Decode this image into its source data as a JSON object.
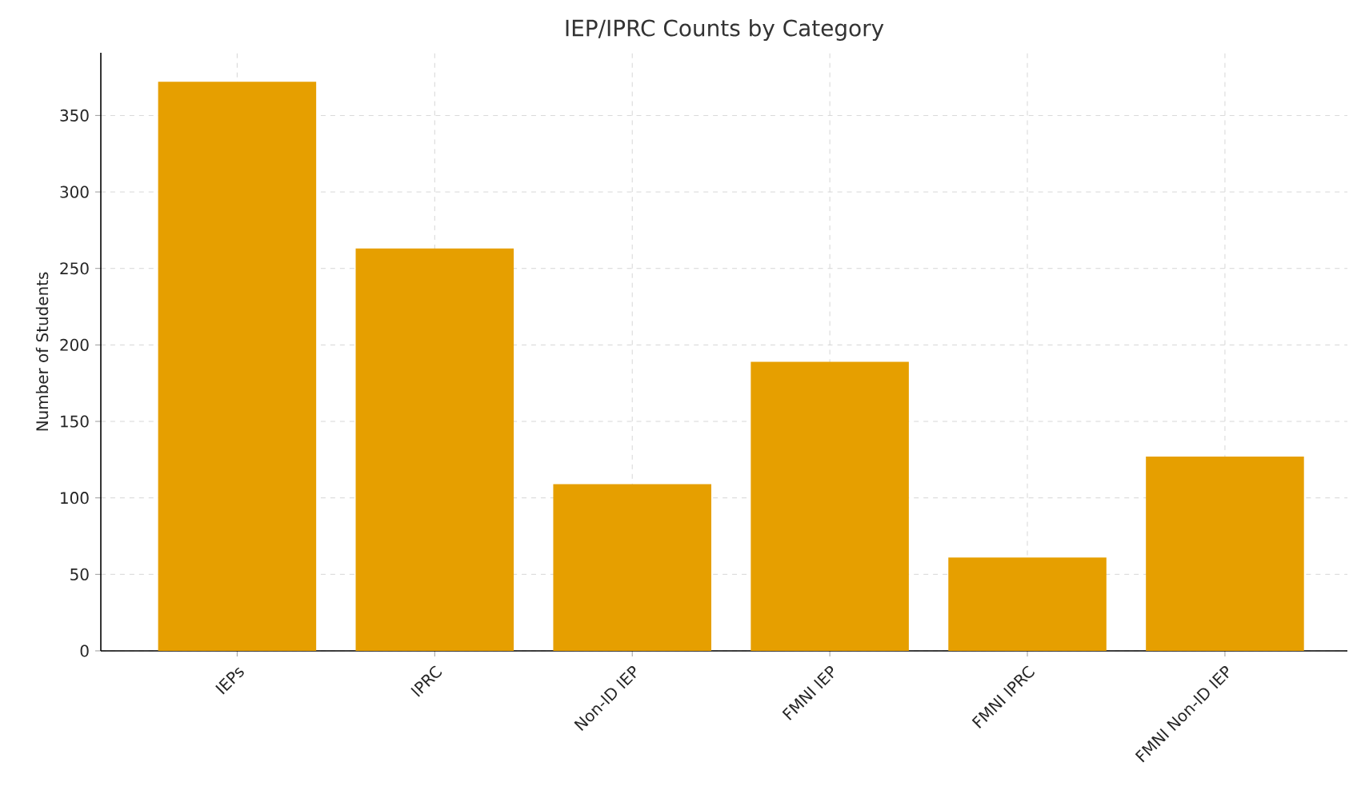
{
  "chart_data": {
    "type": "bar",
    "title": "IEP/IPRC Counts by Category",
    "ylabel": "Number of Students",
    "categories": [
      "IEPs",
      "IPRC",
      "Non-ID IEP",
      "FMNI IEP",
      "FMNI IPRC",
      "FMNI Non-ID IEP"
    ],
    "values": [
      372,
      263,
      109,
      189,
      61,
      127
    ],
    "color": "#e69f00",
    "ylim": [
      0,
      391
    ],
    "yticks": [
      0,
      50,
      100,
      150,
      200,
      250,
      300,
      350
    ],
    "grid": true
  }
}
